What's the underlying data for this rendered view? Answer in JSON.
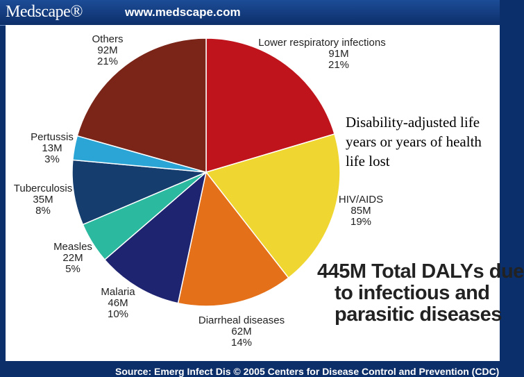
{
  "header": {
    "logo_text": "Medscape®",
    "site_url": "www.medscape.com"
  },
  "chart_data": {
    "type": "pie",
    "title": "445M Total DALYs due to infectious and parasitic diseases",
    "title_lines": [
      "445M Total DALYs due",
      "to infectious and",
      "parasitic diseases"
    ],
    "unit": "M",
    "slices": [
      {
        "label": "Lower respiratory infections",
        "value": 91,
        "value_text": "91M",
        "pct_text": "21%",
        "color": "#c0141c"
      },
      {
        "label": "HIV/AIDS",
        "value": 85,
        "value_text": "85M",
        "pct_text": "19%",
        "color": "#f0d630"
      },
      {
        "label": "Diarrheal diseases",
        "value": 62,
        "value_text": "62M",
        "pct_text": "14%",
        "color": "#e5701a"
      },
      {
        "label": "Malaria",
        "value": 46,
        "value_text": "46M",
        "pct_text": "10%",
        "color": "#1e2470"
      },
      {
        "label": "Measles",
        "value": 22,
        "value_text": "22M",
        "pct_text": "5%",
        "color": "#2bb9a0"
      },
      {
        "label": "Tuberculosis",
        "value": 35,
        "value_text": "35M",
        "pct_text": "8%",
        "color": "#153e6e"
      },
      {
        "label": "Pertussis",
        "value": 13,
        "value_text": "13M",
        "pct_text": "3%",
        "color": "#2aa5d6"
      },
      {
        "label": "Others",
        "value": 92,
        "value_text": "92M",
        "pct_text": "21%",
        "color": "#7a2518"
      }
    ]
  },
  "annotation": "Disability-adjusted life years or years of health life lost",
  "footer": {
    "source": "Source: Emerg Infect Dis © 2005 Centers for Disease Control and Prevention (CDC)"
  }
}
